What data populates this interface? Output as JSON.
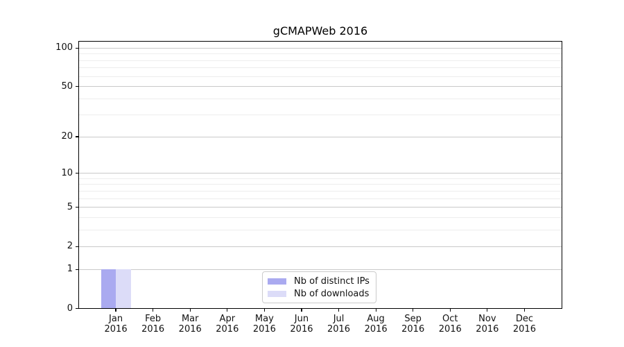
{
  "chart_data": {
    "type": "bar",
    "title": "gCMAPWeb 2016",
    "categories": [
      "Jan 2016",
      "Feb 2016",
      "Mar 2016",
      "Apr 2016",
      "May 2016",
      "Jun 2016",
      "Jul 2016",
      "Aug 2016",
      "Sep 2016",
      "Oct 2016",
      "Nov 2016",
      "Dec 2016"
    ],
    "series": [
      {
        "name": "Nb of distinct IPs",
        "color": "#aaaaf0",
        "values": [
          1,
          0,
          0,
          0,
          0,
          0,
          0,
          0,
          0,
          0,
          0,
          0
        ]
      },
      {
        "name": "Nb of downloads",
        "color": "#dcdcf8",
        "values": [
          1,
          0,
          0,
          0,
          0,
          0,
          0,
          0,
          0,
          0,
          0,
          0
        ]
      }
    ],
    "yscale": "log1p",
    "ylim": [
      0,
      113
    ],
    "y_major_ticks": [
      0,
      1,
      2,
      5,
      10,
      20,
      50,
      100
    ],
    "y_tick_labels": [
      "0",
      "1",
      "2",
      "5",
      "10",
      "20",
      "50",
      "100"
    ],
    "y_minor_ticks": [
      3,
      4,
      6,
      7,
      8,
      9,
      30,
      40,
      60,
      70,
      80,
      90
    ],
    "xlabel": "",
    "ylabel": "",
    "grid": true,
    "legend_position": "lower center",
    "colors": {
      "major_grid": "#c9c9c9",
      "minor_grid": "#ededed",
      "spine": "#000000",
      "legend_border": "#cbcbcb",
      "background": "#ffffff"
    }
  }
}
